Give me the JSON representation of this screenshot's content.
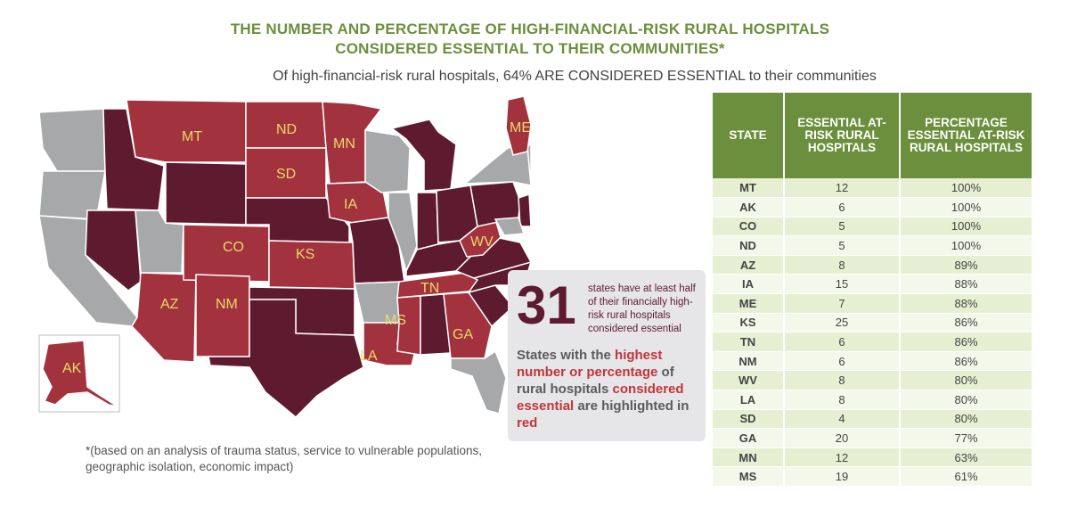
{
  "header": {
    "title_line1": "THE NUMBER AND PERCENTAGE OF HIGH-FINANCIAL-RISK RURAL HOSPITALS",
    "title_line2": "CONSIDERED ESSENTIAL TO THEIR COMMUNITIES*",
    "subtitle": "Of high-financial-risk rural hospitals, 64% ARE CONSIDERED ESSENTIAL to their communities"
  },
  "colors": {
    "green": "#6b8f3c",
    "red_state": "#a3323f",
    "dark_state": "#5e1a2e",
    "gray_state": "#a7a8aa",
    "label_yellow": "#e9d96a"
  },
  "map": {
    "state_labels": [
      "MT",
      "ND",
      "MN",
      "SD",
      "ME",
      "IA",
      "CO",
      "KS",
      "WV",
      "TN",
      "AZ",
      "NM",
      "MS",
      "GA",
      "LA",
      "AK"
    ]
  },
  "callout": {
    "big_number": "31",
    "big_text": "states have at least half of their financially high-risk rural hospitals considered essential",
    "msg_part1": "States with the ",
    "msg_red1": "highest number or percentage",
    "msg_part2": " of rural hospitals ",
    "msg_red2": "considered essential",
    "msg_part3": " are highlighted in ",
    "msg_red3": "red"
  },
  "footnote": "*(based on an analysis of trauma status, service to vulnerable populations, geographic isolation, economic impact)",
  "chart_data": {
    "type": "table",
    "columns": [
      "STATE",
      "ESSENTIAL AT-RISK RURAL HOSPITALS",
      "PERCENTAGE ESSENTIAL AT-RISK RURAL HOSPITALS"
    ],
    "rows": [
      {
        "state": "MT",
        "count": "12",
        "pct": "100%"
      },
      {
        "state": "AK",
        "count": "6",
        "pct": "100%"
      },
      {
        "state": "CO",
        "count": "5",
        "pct": "100%"
      },
      {
        "state": "ND",
        "count": "5",
        "pct": "100%"
      },
      {
        "state": "AZ",
        "count": "8",
        "pct": "89%"
      },
      {
        "state": "IA",
        "count": "15",
        "pct": "88%"
      },
      {
        "state": "ME",
        "count": "7",
        "pct": "88%"
      },
      {
        "state": "KS",
        "count": "25",
        "pct": "86%"
      },
      {
        "state": "TN",
        "count": "6",
        "pct": "86%"
      },
      {
        "state": "NM",
        "count": "6",
        "pct": "86%"
      },
      {
        "state": "WV",
        "count": "8",
        "pct": "80%"
      },
      {
        "state": "LA",
        "count": "8",
        "pct": "80%"
      },
      {
        "state": "SD",
        "count": "4",
        "pct": "80%"
      },
      {
        "state": "GA",
        "count": "20",
        "pct": "77%"
      },
      {
        "state": "MN",
        "count": "12",
        "pct": "63%"
      },
      {
        "state": "MS",
        "count": "19",
        "pct": "61%"
      }
    ]
  }
}
